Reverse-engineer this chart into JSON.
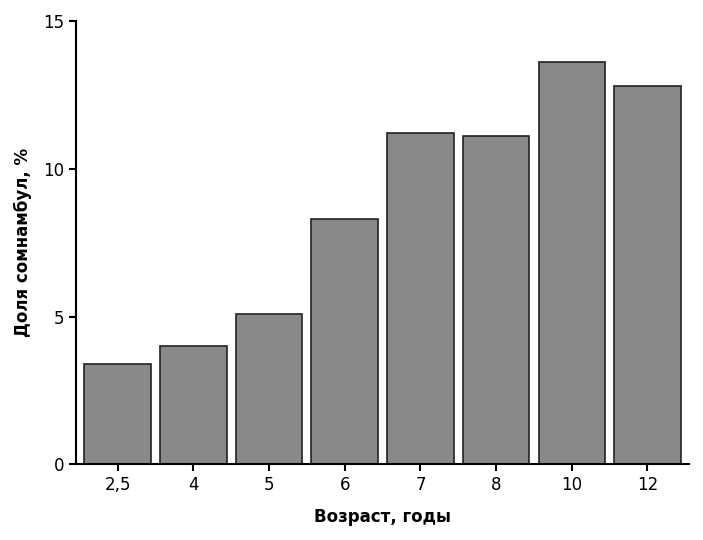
{
  "categories": [
    "2,5",
    "4",
    "5",
    "6",
    "7",
    "8",
    "10",
    "12"
  ],
  "values": [
    3.4,
    4.0,
    5.1,
    8.3,
    11.2,
    11.1,
    13.6,
    12.8
  ],
  "bar_color": "#898989",
  "bar_edge_color": "#222222",
  "xlabel": "Возраст, годы",
  "ylabel": "Доля сомнамбул, %",
  "ylim": [
    0,
    15
  ],
  "yticks": [
    0,
    5,
    10,
    15
  ],
  "xlabel_fontsize": 12,
  "ylabel_fontsize": 12,
  "tick_fontsize": 12,
  "background_color": "#ffffff",
  "bar_width": 0.88,
  "spine_linewidth": 1.5,
  "edge_linewidth": 1.2
}
